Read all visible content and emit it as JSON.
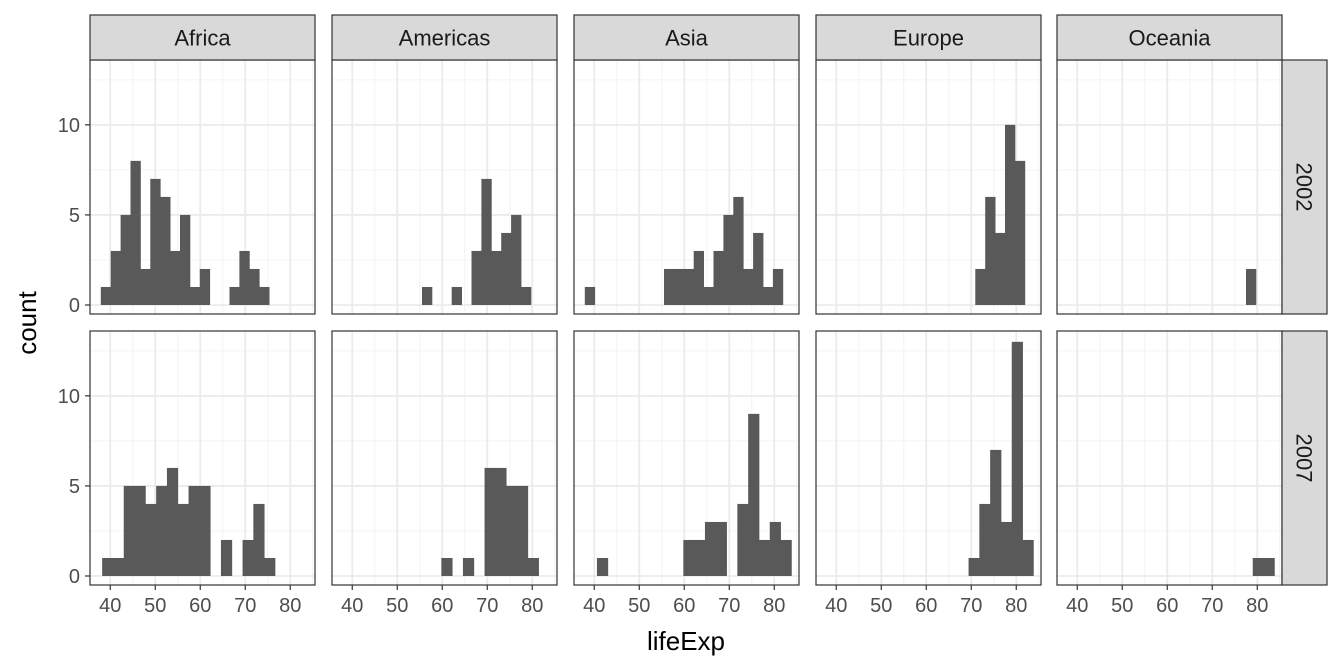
{
  "chart_data": {
    "type": "histogram-facet",
    "xlabel": "lifeExp",
    "ylabel": "count",
    "xlim": [
      35.5,
      85.5
    ],
    "ylim": [
      -0.5,
      13.6
    ],
    "x_ticks": [
      40,
      50,
      60,
      70,
      80
    ],
    "x_tick_labels": [
      "40",
      "50",
      "60",
      "70",
      "80"
    ],
    "y_ticks": [
      0,
      5,
      10
    ],
    "y_tick_labels": [
      "0",
      "5",
      "10"
    ],
    "grid": true,
    "columns": [
      "Africa",
      "Americas",
      "Asia",
      "Europe",
      "Oceania"
    ],
    "rows": [
      "2002",
      "2007"
    ],
    "bins": {
      "2002": [
        37.9,
        40.1,
        42.3,
        44.5,
        46.7,
        48.9,
        51.1,
        53.3,
        55.5,
        57.7,
        59.9,
        62.1,
        64.3,
        66.5,
        68.7,
        70.9,
        73.1,
        75.3,
        77.5,
        79.7,
        81.9
      ],
      "2007": [
        38.2,
        40.6,
        43.0,
        45.4,
        47.8,
        50.2,
        52.6,
        55.0,
        57.4,
        59.8,
        62.2,
        64.6,
        67.0,
        69.4,
        71.8,
        74.2,
        76.6,
        79.0,
        81.4,
        83.8
      ]
    },
    "panels": [
      {
        "row": "2002",
        "col": "Africa",
        "counts": [
          1,
          3,
          5,
          8,
          2,
          7,
          6,
          3,
          5,
          1,
          2,
          0,
          0,
          1,
          3,
          2,
          1,
          0,
          0,
          0
        ]
      },
      {
        "row": "2002",
        "col": "Americas",
        "counts": [
          0,
          0,
          0,
          0,
          0,
          0,
          0,
          0,
          1,
          0,
          0,
          1,
          0,
          3,
          7,
          3,
          4,
          5,
          1,
          0
        ]
      },
      {
        "row": "2002",
        "col": "Asia",
        "counts": [
          1,
          0,
          0,
          0,
          0,
          0,
          0,
          0,
          2,
          2,
          2,
          3,
          1,
          3,
          5,
          6,
          2,
          4,
          1,
          2
        ]
      },
      {
        "row": "2002",
        "col": "Europe",
        "counts": [
          0,
          0,
          0,
          0,
          0,
          0,
          0,
          0,
          0,
          0,
          0,
          0,
          0,
          0,
          0,
          2,
          6,
          4,
          10,
          8
        ]
      },
      {
        "row": "2002",
        "col": "Oceania",
        "counts": [
          0,
          0,
          0,
          0,
          0,
          0,
          0,
          0,
          0,
          0,
          0,
          0,
          0,
          0,
          0,
          0,
          0,
          0,
          2,
          0
        ]
      },
      {
        "row": "2007",
        "col": "Africa",
        "counts": [
          1,
          1,
          5,
          5,
          4,
          5,
          6,
          4,
          5,
          5,
          0,
          2,
          0,
          2,
          4,
          1,
          0,
          0,
          0
        ]
      },
      {
        "row": "2007",
        "col": "Americas",
        "counts": [
          0,
          0,
          0,
          0,
          0,
          0,
          0,
          0,
          0,
          1,
          0,
          1,
          0,
          6,
          6,
          5,
          5,
          1,
          0
        ]
      },
      {
        "row": "2007",
        "col": "Asia",
        "counts": [
          0,
          1,
          0,
          0,
          0,
          0,
          0,
          0,
          0,
          2,
          2,
          3,
          3,
          0,
          4,
          9,
          2,
          3,
          2
        ]
      },
      {
        "row": "2007",
        "col": "Europe",
        "counts": [
          0,
          0,
          0,
          0,
          0,
          0,
          0,
          0,
          0,
          0,
          0,
          0,
          0,
          1,
          4,
          7,
          3,
          13,
          2
        ]
      },
      {
        "row": "2007",
        "col": "Oceania",
        "counts": [
          0,
          0,
          0,
          0,
          0,
          0,
          0,
          0,
          0,
          0,
          0,
          0,
          0,
          0,
          0,
          0,
          0,
          1,
          1
        ]
      }
    ]
  },
  "colors": {
    "bar": "#595959",
    "strip_fill": "#d9d9d9",
    "strip_border": "#333333",
    "panel_border": "#333333",
    "grid_major": "#ebebeb",
    "grid_minor": "#f4f4f4",
    "tick": "#333333"
  }
}
